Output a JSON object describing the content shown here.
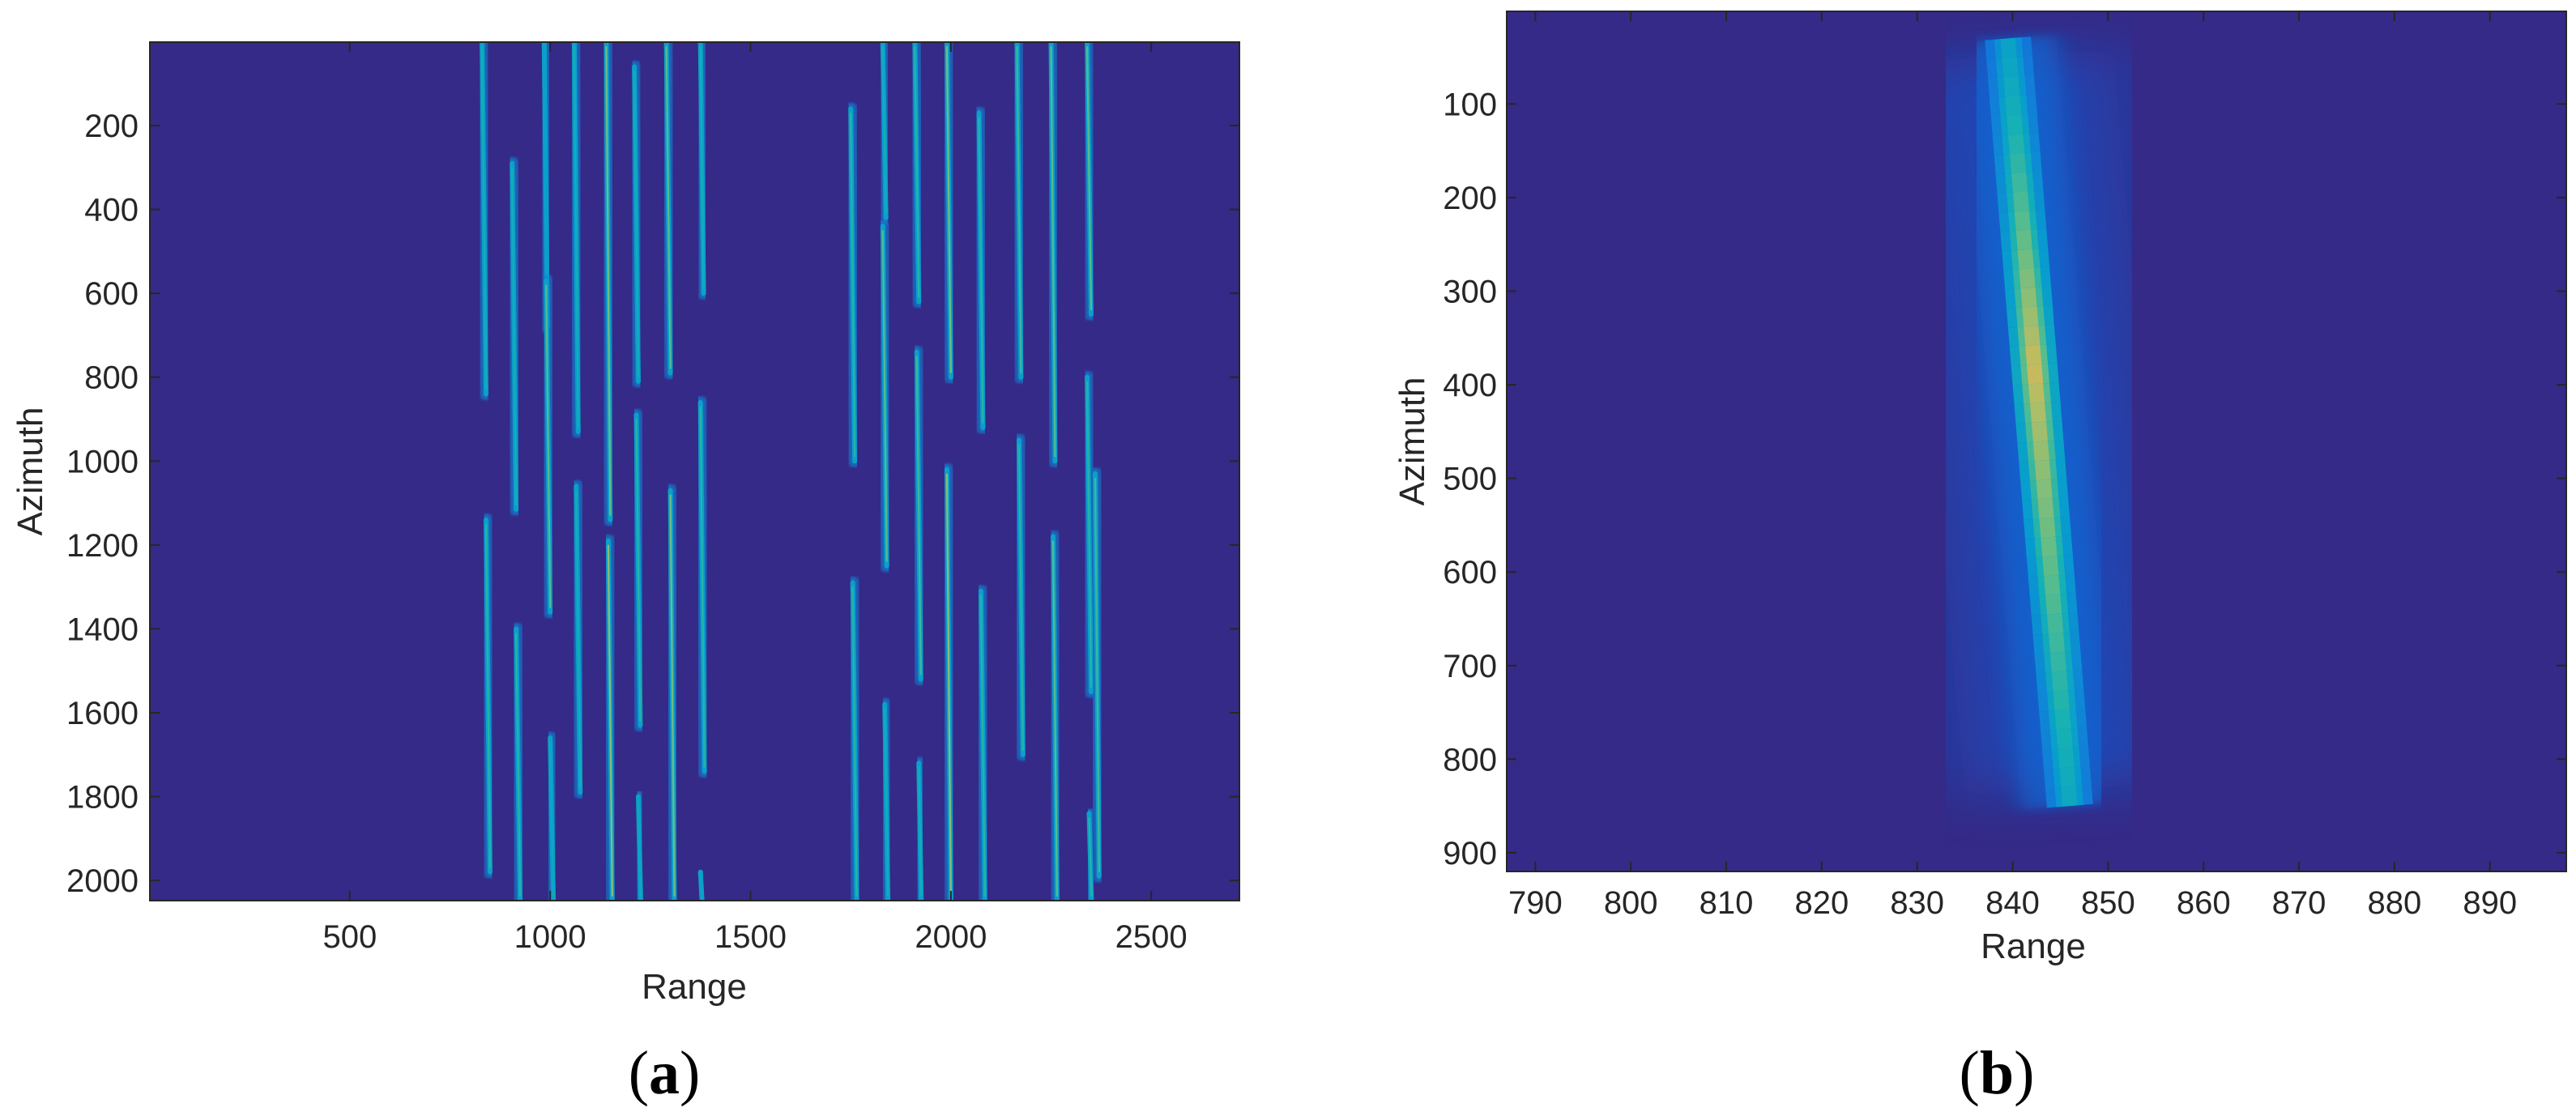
{
  "chart_data": [
    {
      "type": "heatmap",
      "panel_label": "a",
      "title": "",
      "xlabel": "Range",
      "ylabel": "Azimuth",
      "xlim": [
        1,
        2720
      ],
      "ylim": [
        2048,
        1
      ],
      "y_direction": "reversed",
      "xticks": [
        500,
        1000,
        1500,
        2000,
        2500
      ],
      "yticks": [
        200,
        400,
        600,
        800,
        1000,
        1200,
        1400,
        1600,
        1800,
        2000
      ],
      "colormap": "parula",
      "background_color": "#352a87",
      "grid": false,
      "legend": "none",
      "traces": [
        {
          "range": 830,
          "az": [
            1,
            840
          ],
          "tilt": 10,
          "level": 0.55
        },
        {
          "range": 840,
          "az": [
            1140,
            1980
          ],
          "tilt": 10,
          "level": 0.6
        },
        {
          "range": 905,
          "az": [
            290,
            1115
          ],
          "tilt": 10,
          "level": 0.55
        },
        {
          "range": 915,
          "az": [
            1400,
            2048
          ],
          "tilt": 10,
          "level": 0.6
        },
        {
          "range": 985,
          "az": [
            1,
            680
          ],
          "tilt": 8,
          "level": 0.45
        },
        {
          "range": 990,
          "az": [
            570,
            1360
          ],
          "tilt": 10,
          "level": 0.7
        },
        {
          "range": 1000,
          "az": [
            1660,
            2048
          ],
          "tilt": 8,
          "level": 0.5
        },
        {
          "range": 1060,
          "az": [
            1,
            930
          ],
          "tilt": 10,
          "level": 0.55
        },
        {
          "range": 1065,
          "az": [
            1060,
            1790
          ],
          "tilt": 10,
          "level": 0.55
        },
        {
          "range": 1140,
          "az": [
            1,
            1140
          ],
          "tilt": 10,
          "level": 0.75
        },
        {
          "range": 1145,
          "az": [
            1190,
            2048
          ],
          "tilt": 10,
          "level": 0.8
        },
        {
          "range": 1210,
          "az": [
            60,
            810
          ],
          "tilt": 10,
          "level": 0.55
        },
        {
          "range": 1215,
          "az": [
            890,
            1630
          ],
          "tilt": 10,
          "level": 0.6
        },
        {
          "range": 1220,
          "az": [
            1800,
            2048
          ],
          "tilt": 6,
          "level": 0.5
        },
        {
          "range": 1290,
          "az": [
            1,
            790
          ],
          "tilt": 10,
          "level": 0.7
        },
        {
          "range": 1300,
          "az": [
            1070,
            2048
          ],
          "tilt": 10,
          "level": 0.75
        },
        {
          "range": 1375,
          "az": [
            1,
            600
          ],
          "tilt": 8,
          "level": 0.55
        },
        {
          "range": 1375,
          "az": [
            860,
            1740
          ],
          "tilt": 10,
          "level": 0.6
        },
        {
          "range": 1375,
          "az": [
            1980,
            2048
          ],
          "tilt": 4,
          "level": 0.45
        },
        {
          "range": 1750,
          "az": [
            160,
            1000
          ],
          "tilt": 10,
          "level": 0.6
        },
        {
          "range": 1755,
          "az": [
            1290,
            2048
          ],
          "tilt": 10,
          "level": 0.6
        },
        {
          "range": 1830,
          "az": [
            1,
            420
          ],
          "tilt": 8,
          "level": 0.55
        },
        {
          "range": 1830,
          "az": [
            440,
            1250
          ],
          "tilt": 10,
          "level": 0.7
        },
        {
          "range": 1835,
          "az": [
            1580,
            2048
          ],
          "tilt": 8,
          "level": 0.55
        },
        {
          "range": 1910,
          "az": [
            1,
            620
          ],
          "tilt": 10,
          "level": 0.6
        },
        {
          "range": 1915,
          "az": [
            740,
            1520
          ],
          "tilt": 10,
          "level": 0.65
        },
        {
          "range": 1920,
          "az": [
            1720,
            2048
          ],
          "tilt": 6,
          "level": 0.55
        },
        {
          "range": 1990,
          "az": [
            1,
            800
          ],
          "tilt": 10,
          "level": 0.75
        },
        {
          "range": 1990,
          "az": [
            1020,
            2048
          ],
          "tilt": 10,
          "level": 0.8
        },
        {
          "range": 2070,
          "az": [
            170,
            920
          ],
          "tilt": 10,
          "level": 0.6
        },
        {
          "range": 2075,
          "az": [
            1310,
            2048
          ],
          "tilt": 10,
          "level": 0.6
        },
        {
          "range": 2165,
          "az": [
            1,
            800
          ],
          "tilt": 10,
          "level": 0.65
        },
        {
          "range": 2170,
          "az": [
            950,
            1700
          ],
          "tilt": 10,
          "level": 0.6
        },
        {
          "range": 2250,
          "az": [
            1,
            1000
          ],
          "tilt": 10,
          "level": 0.7
        },
        {
          "range": 2255,
          "az": [
            1180,
            2048
          ],
          "tilt": 10,
          "level": 0.7
        },
        {
          "range": 2340,
          "az": [
            1,
            650
          ],
          "tilt": 10,
          "level": 0.7
        },
        {
          "range": 2340,
          "az": [
            800,
            1550
          ],
          "tilt": 10,
          "level": 0.6
        },
        {
          "range": 2345,
          "az": [
            1840,
            2048
          ],
          "tilt": 6,
          "level": 0.6
        },
        {
          "range": 2360,
          "az": [
            1030,
            1990
          ],
          "tilt": 10,
          "level": 0.65
        }
      ]
    },
    {
      "type": "heatmap",
      "panel_label": "b",
      "title": "",
      "xlabel": "Range",
      "ylabel": "Azimuth",
      "xlim": [
        787,
        898
      ],
      "ylim": [
        920,
        1
      ],
      "y_direction": "reversed",
      "xticks": [
        790,
        800,
        810,
        820,
        830,
        840,
        850,
        860,
        870,
        880,
        890
      ],
      "yticks": [
        100,
        200,
        300,
        400,
        500,
        600,
        700,
        800,
        900
      ],
      "colormap": "parula",
      "background_color": "#352a87",
      "grid": false,
      "legend": "none",
      "ridge": {
        "start": {
          "range": 839.5,
          "azimuth": 30
        },
        "end": {
          "range": 846,
          "azimuth": 850
        },
        "peak_azimuth": 380,
        "peak_level": 0.9,
        "width_range_units": 2.2
      }
    }
  ]
}
